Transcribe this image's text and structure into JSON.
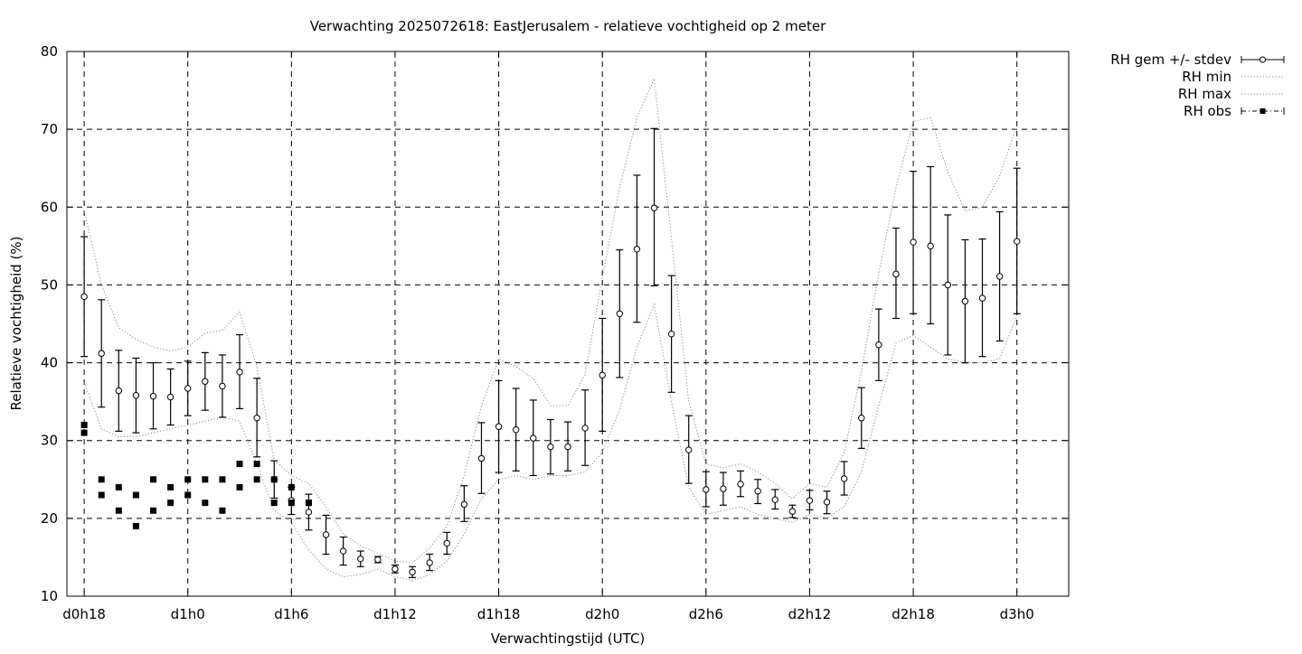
{
  "chart_data": {
    "type": "line",
    "title": "Verwachting 2025072618: EastJerusalem - relatieve vochtigheid op 2 meter",
    "xlabel": "Verwachtingstijd (UTC)",
    "ylabel": "Relatieve vochtigheid (%)",
    "xlim": [
      17,
      75
    ],
    "ylim": [
      10,
      80
    ],
    "grid": true,
    "legend_position": "top-right, outside plot area",
    "x_ticks": [
      {
        "x": 18,
        "label": "d0h18"
      },
      {
        "x": 24,
        "label": "d1h0"
      },
      {
        "x": 30,
        "label": "d1h6"
      },
      {
        "x": 36,
        "label": "d1h12"
      },
      {
        "x": 42,
        "label": "d1h18"
      },
      {
        "x": 48,
        "label": "d2h0"
      },
      {
        "x": 54,
        "label": "d2h6"
      },
      {
        "x": 60,
        "label": "d2h12"
      },
      {
        "x": 66,
        "label": "d2h18"
      },
      {
        "x": 72,
        "label": "d3h0"
      }
    ],
    "y_ticks": [
      10,
      20,
      30,
      40,
      50,
      60,
      70,
      80
    ],
    "legend": [
      {
        "label": "RH gem +/- stdev",
        "style": "errorbar-open-circle"
      },
      {
        "label": "RH min",
        "style": "dotted"
      },
      {
        "label": "RH max",
        "style": "dotted"
      },
      {
        "label": "RH obs",
        "style": "filled-square"
      }
    ],
    "series": [
      {
        "name": "RH gem +/- stdev",
        "x": [
          18,
          19,
          20,
          21,
          22,
          23,
          24,
          25,
          26,
          27,
          28,
          29,
          30,
          31,
          32,
          33,
          34,
          35,
          36,
          37,
          38,
          39,
          40,
          41,
          42,
          43,
          44,
          45,
          46,
          47,
          48,
          49,
          50,
          51,
          52,
          53,
          54,
          55,
          56,
          57,
          58,
          59,
          60,
          61,
          62,
          63,
          64,
          65,
          66,
          67,
          68,
          69,
          70,
          71,
          72
        ],
        "mean": [
          48.5,
          41.2,
          36.4,
          35.8,
          35.7,
          35.6,
          36.7,
          37.6,
          37.0,
          38.8,
          32.9,
          25.0,
          22.3,
          20.8,
          17.9,
          15.8,
          14.8,
          14.7,
          13.5,
          13.1,
          14.3,
          16.8,
          21.8,
          27.7,
          31.8,
          31.4,
          30.3,
          29.2,
          29.2,
          31.6,
          38.4,
          46.3,
          54.6,
          59.9,
          43.7,
          28.8,
          23.7,
          23.8,
          24.4,
          23.5,
          22.4,
          20.9,
          22.3,
          22.1,
          25.1,
          32.9,
          42.3,
          51.4,
          55.5,
          55.0,
          50.0,
          47.9,
          48.3,
          51.1,
          55.6
        ],
        "lower": [
          40.8,
          34.3,
          31.2,
          31.0,
          31.5,
          32.0,
          33.2,
          33.9,
          33.0,
          34.1,
          27.9,
          22.6,
          20.5,
          18.5,
          15.4,
          14.0,
          13.8,
          14.3,
          13.0,
          12.4,
          13.3,
          15.4,
          19.6,
          23.2,
          25.9,
          26.1,
          25.5,
          25.7,
          26.1,
          26.8,
          31.2,
          38.1,
          45.2,
          49.9,
          36.2,
          24.5,
          21.5,
          21.7,
          22.8,
          21.9,
          21.2,
          20.1,
          21.1,
          20.6,
          23.0,
          29.0,
          37.7,
          45.7,
          46.3,
          45.0,
          41.0,
          40.0,
          40.8,
          42.8,
          46.3
        ],
        "upper": [
          56.2,
          48.1,
          41.6,
          40.6,
          40.0,
          39.2,
          40.2,
          41.3,
          41.0,
          43.6,
          38.0,
          27.4,
          24.0,
          23.1,
          20.4,
          17.6,
          15.8,
          15.1,
          14.0,
          13.8,
          15.4,
          18.2,
          24.2,
          32.3,
          37.7,
          36.7,
          35.2,
          32.7,
          32.4,
          36.5,
          45.7,
          54.5,
          64.1,
          70.1,
          51.2,
          33.2,
          26.0,
          25.9,
          26.1,
          25.0,
          23.7,
          21.7,
          23.6,
          23.5,
          27.3,
          36.8,
          46.9,
          57.3,
          64.6,
          65.2,
          59.0,
          55.8,
          55.9,
          59.4,
          65.0
        ]
      },
      {
        "name": "RH min",
        "x": [
          18,
          19,
          20,
          21,
          22,
          23,
          24,
          25,
          26,
          27,
          28,
          29,
          30,
          31,
          32,
          33,
          34,
          35,
          36,
          37,
          38,
          39,
          40,
          41,
          42,
          43,
          44,
          45,
          46,
          47,
          48,
          49,
          50,
          51,
          52,
          53,
          54,
          55,
          56,
          57,
          58,
          59,
          60,
          61,
          62,
          63,
          64,
          65,
          66,
          67,
          68,
          69,
          70,
          71,
          72
        ],
        "values": [
          37.5,
          31.5,
          30.5,
          30.5,
          31.0,
          31.5,
          32.0,
          32.5,
          33.0,
          32.5,
          27.0,
          21.0,
          19.5,
          16.0,
          13.5,
          12.5,
          12.8,
          13.5,
          12.5,
          12.0,
          12.8,
          14.5,
          18.0,
          22.5,
          25.0,
          25.5,
          25.0,
          25.5,
          25.5,
          26.0,
          28.5,
          34.0,
          42.0,
          47.5,
          35.0,
          24.0,
          20.5,
          21.0,
          21.5,
          20.5,
          20.0,
          19.5,
          20.5,
          20.0,
          21.5,
          26.0,
          34.5,
          42.5,
          43.5,
          42.0,
          40.5,
          40.0,
          40.0,
          40.5,
          46.0
        ]
      },
      {
        "name": "RH max",
        "x": [
          18,
          19,
          20,
          21,
          22,
          23,
          24,
          25,
          26,
          27,
          28,
          29,
          30,
          31,
          32,
          33,
          34,
          35,
          36,
          37,
          38,
          39,
          40,
          41,
          42,
          43,
          44,
          45,
          46,
          47,
          48,
          49,
          50,
          51,
          52,
          53,
          54,
          55,
          56,
          57,
          58,
          59,
          60,
          61,
          62,
          63,
          64,
          65,
          66,
          67,
          68,
          69,
          70,
          71,
          72
        ],
        "values": [
          59.5,
          50.0,
          44.5,
          43.0,
          42.0,
          41.5,
          42.0,
          43.8,
          44.2,
          46.5,
          39.5,
          27.5,
          25.5,
          24.5,
          21.5,
          18.0,
          16.5,
          15.5,
          14.5,
          14.3,
          16.2,
          19.0,
          25.5,
          34.5,
          40.5,
          39.5,
          38.0,
          34.5,
          34.5,
          38.5,
          51.0,
          62.5,
          71.5,
          76.5,
          56.0,
          35.0,
          27.0,
          26.5,
          27.0,
          26.0,
          24.5,
          22.5,
          24.5,
          24.0,
          28.5,
          39.0,
          51.5,
          62.5,
          71.0,
          71.5,
          64.5,
          59.5,
          60.0,
          64.0,
          70.5
        ]
      },
      {
        "name": "RH obs",
        "points": [
          [
            18,
            32
          ],
          [
            18,
            31
          ],
          [
            19,
            25
          ],
          [
            19,
            23
          ],
          [
            20,
            24
          ],
          [
            20,
            21
          ],
          [
            21,
            23
          ],
          [
            21,
            19
          ],
          [
            22,
            25
          ],
          [
            22,
            21
          ],
          [
            23,
            24
          ],
          [
            23,
            22
          ],
          [
            24,
            25
          ],
          [
            24,
            23
          ],
          [
            25,
            25
          ],
          [
            25,
            22
          ],
          [
            26,
            25
          ],
          [
            26,
            21
          ],
          [
            27,
            27
          ],
          [
            27,
            24
          ],
          [
            28,
            27
          ],
          [
            28,
            25
          ],
          [
            29,
            25
          ],
          [
            29,
            22
          ],
          [
            30,
            24
          ],
          [
            30,
            22
          ],
          [
            31,
            22
          ],
          [
            31,
            22
          ]
        ]
      }
    ]
  }
}
